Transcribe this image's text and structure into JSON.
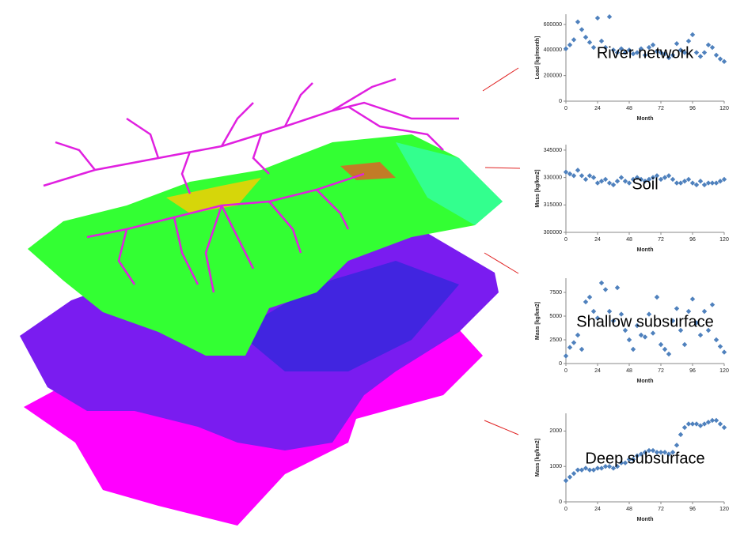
{
  "chart_data": [
    {
      "type": "scatter",
      "title": "River network",
      "x_label": "Month",
      "y_label": "Load [kg/month]",
      "color": "#4f81bd",
      "x": [
        0,
        3,
        6,
        9,
        12,
        15,
        18,
        21,
        24,
        27,
        30,
        33,
        36,
        39,
        42,
        45,
        48,
        51,
        54,
        57,
        60,
        63,
        66,
        69,
        72,
        75,
        78,
        81,
        84,
        87,
        90,
        93,
        96,
        99,
        102,
        105,
        108,
        111,
        114,
        117,
        120
      ],
      "values": [
        410000,
        440000,
        480000,
        620000,
        560000,
        500000,
        460000,
        420000,
        650000,
        470000,
        420000,
        660000,
        400000,
        380000,
        410000,
        380000,
        400000,
        370000,
        380000,
        410000,
        360000,
        420000,
        440000,
        390000,
        380000,
        370000,
        340000,
        360000,
        450000,
        400000,
        380000,
        470000,
        520000,
        380000,
        350000,
        380000,
        440000,
        420000,
        360000,
        330000,
        310000
      ],
      "xlim": [
        0,
        120
      ],
      "xticks": [
        0,
        24,
        48,
        72,
        96,
        120
      ],
      "ylim": [
        0,
        680000
      ],
      "yticks": [
        0,
        200000,
        400000,
        600000
      ]
    },
    {
      "type": "scatter",
      "title": "Soil",
      "x_label": "Month",
      "y_label": "Mass [kg/km2]",
      "color": "#4f81bd",
      "x": [
        0,
        3,
        6,
        9,
        12,
        15,
        18,
        21,
        24,
        27,
        30,
        33,
        36,
        39,
        42,
        45,
        48,
        51,
        54,
        57,
        60,
        63,
        66,
        69,
        72,
        75,
        78,
        81,
        84,
        87,
        90,
        93,
        96,
        99,
        102,
        105,
        108,
        111,
        114,
        117,
        120
      ],
      "values": [
        333000,
        332000,
        331000,
        334000,
        331000,
        329000,
        331000,
        330000,
        327000,
        328000,
        329000,
        327000,
        326000,
        328000,
        330000,
        328000,
        327000,
        329000,
        330000,
        329000,
        328000,
        329000,
        330000,
        331000,
        329000,
        330000,
        331000,
        329000,
        327000,
        327000,
        328000,
        329000,
        327000,
        326000,
        328000,
        326000,
        327000,
        327000,
        327000,
        328000,
        329000
      ],
      "xlim": [
        0,
        120
      ],
      "xticks": [
        0,
        24,
        48,
        72,
        96,
        120
      ],
      "ylim": [
        300000,
        348000
      ],
      "yticks": [
        300000,
        315000,
        330000,
        345000
      ]
    },
    {
      "type": "scatter",
      "title": "Shallow subsurface",
      "x_label": "Month",
      "y_label": "Mass [kg/km2]",
      "color": "#4f81bd",
      "x": [
        0,
        3,
        6,
        9,
        12,
        15,
        18,
        21,
        24,
        27,
        30,
        33,
        36,
        39,
        42,
        45,
        48,
        51,
        54,
        57,
        60,
        63,
        66,
        69,
        72,
        75,
        78,
        81,
        84,
        87,
        90,
        93,
        96,
        99,
        102,
        105,
        108,
        111,
        114,
        117,
        120
      ],
      "values": [
        800,
        1700,
        2200,
        3000,
        1500,
        6500,
        7000,
        5500,
        4800,
        8500,
        7800,
        5500,
        4500,
        8000,
        5200,
        3500,
        2500,
        1500,
        4000,
        3000,
        2800,
        5200,
        3200,
        7000,
        2000,
        1500,
        1000,
        4500,
        5800,
        3500,
        2000,
        5500,
        6800,
        4300,
        3000,
        5500,
        3500,
        6200,
        2500,
        1800,
        1200
      ],
      "xlim": [
        0,
        120
      ],
      "xticks": [
        0,
        24,
        48,
        72,
        96,
        120
      ],
      "ylim": [
        0,
        9000
      ],
      "yticks": [
        0,
        2500,
        5000,
        7500
      ]
    },
    {
      "type": "scatter",
      "title": "Deep subsurface",
      "x_label": "Month",
      "y_label": "Mass [kg/km2]",
      "color": "#4f81bd",
      "x": [
        0,
        3,
        6,
        9,
        12,
        15,
        18,
        21,
        24,
        27,
        30,
        33,
        36,
        39,
        42,
        45,
        48,
        51,
        54,
        57,
        60,
        63,
        66,
        69,
        72,
        75,
        78,
        81,
        84,
        87,
        90,
        93,
        96,
        99,
        102,
        105,
        108,
        111,
        114,
        117,
        120
      ],
      "values": [
        600,
        700,
        800,
        900,
        900,
        950,
        900,
        900,
        950,
        950,
        1000,
        1000,
        950,
        1000,
        1100,
        1100,
        1200,
        1200,
        1300,
        1350,
        1400,
        1450,
        1450,
        1400,
        1400,
        1400,
        1350,
        1400,
        1600,
        1900,
        2100,
        2200,
        2200,
        2200,
        2150,
        2200,
        2250,
        2300,
        2300,
        2200,
        2100
      ],
      "xlim": [
        0,
        120
      ],
      "xticks": [
        0,
        24,
        48,
        72,
        96,
        120
      ],
      "ylim": [
        0,
        2500
      ],
      "yticks": [
        0,
        1000,
        2000
      ]
    }
  ]
}
